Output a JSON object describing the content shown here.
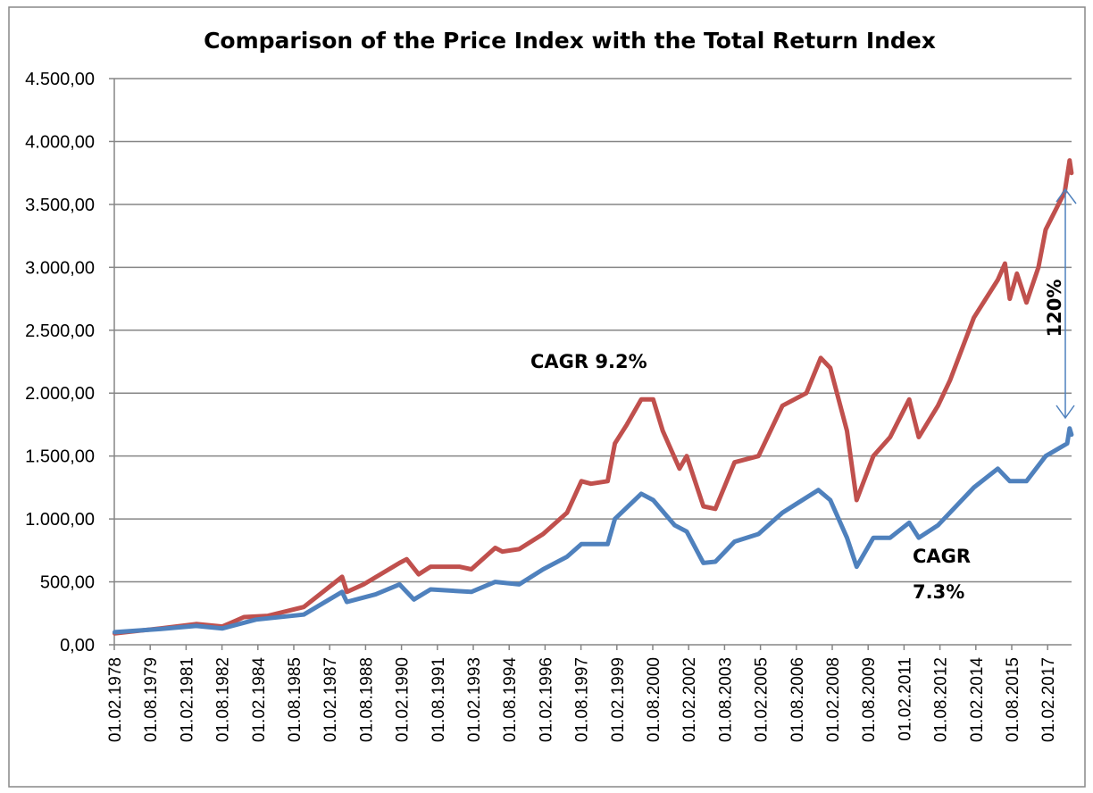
{
  "chart_data": {
    "type": "line",
    "title": "Comparison of the Price Index with the Total Return Index",
    "xlabel": "",
    "ylabel": "",
    "ylim": [
      0,
      4500
    ],
    "y_ticks": [
      0,
      500,
      1000,
      1500,
      2000,
      2500,
      3000,
      3500,
      4000,
      4500
    ],
    "y_tick_labels": [
      "0,00",
      "500,00",
      "1.000,00",
      "1.500,00",
      "2.000,00",
      "2.500,00",
      "3.000,00",
      "3.500,00",
      "4.000,00",
      "4.500,00"
    ],
    "x_tick_labels": [
      "01.02.1978",
      "01.08.1979",
      "01.02.1981",
      "01.08.1982",
      "01.02.1984",
      "01.08.1985",
      "01.02.1987",
      "01.08.1988",
      "01.02.1990",
      "01.08.1991",
      "01.02.1993",
      "01.08.1994",
      "01.02.1996",
      "01.08.1997",
      "01.02.1999",
      "01.08.2000",
      "01.02.2002",
      "01.08.2003",
      "01.02.2005",
      "01.08.2006",
      "01.02.2008",
      "01.08.2009",
      "01.02.2011",
      "01.08.2012",
      "01.02.2014",
      "01.08.2015",
      "01.02.2017"
    ],
    "xlim": [
      1978.083,
      2018.1
    ],
    "grid": "horizontal",
    "legend": "none",
    "series": [
      {
        "name": "Total Return Index",
        "color": "#c0504d",
        "x": [
          1978.1,
          1980,
          1981.5,
          1982.6,
          1983.5,
          1984.5,
          1986,
          1987.6,
          1987.8,
          1988.5,
          1990,
          1990.3,
          1990.8,
          1991.3,
          1992.5,
          1993,
          1994,
          1994.3,
          1995,
          1996,
          1997,
          1997.6,
          1998,
          1998.7,
          1999,
          1999.5,
          2000.1,
          2000.6,
          2001,
          2001.7,
          2002,
          2002.7,
          2003.2,
          2004,
          2005,
          2006,
          2007,
          2007.6,
          2008,
          2008.7,
          2009.1,
          2009.8,
          2010.5,
          2011.3,
          2011.7,
          2012.5,
          2013,
          2014,
          2015,
          2015.3,
          2015.5,
          2015.8,
          2016.2,
          2016.7,
          2017,
          2017.8,
          2018,
          2018.08
        ],
        "values": [
          90,
          130,
          165,
          145,
          220,
          230,
          300,
          540,
          420,
          480,
          650,
          680,
          560,
          620,
          620,
          600,
          770,
          740,
          760,
          880,
          1050,
          1300,
          1280,
          1300,
          1600,
          1750,
          1950,
          1950,
          1700,
          1400,
          1500,
          1100,
          1080,
          1450,
          1500,
          1900,
          2000,
          2280,
          2200,
          1700,
          1150,
          1500,
          1650,
          1950,
          1650,
          1900,
          2100,
          2600,
          2900,
          3030,
          2750,
          2950,
          2720,
          3000,
          3300,
          3600,
          3850,
          3750
        ]
      },
      {
        "name": "Price Index",
        "color": "#4f81bd",
        "x": [
          1978.1,
          1980,
          1981.5,
          1982.6,
          1984,
          1986,
          1987.6,
          1987.8,
          1989,
          1990,
          1990.6,
          1991.3,
          1993,
          1994,
          1995,
          1996,
          1997,
          1997.6,
          1998.7,
          1999,
          2000.1,
          2000.6,
          2001.5,
          2002,
          2002.7,
          2003.2,
          2004,
          2005,
          2006,
          2007.5,
          2008,
          2008.7,
          2009.1,
          2009.8,
          2010.5,
          2011.3,
          2011.7,
          2012.5,
          2014,
          2015,
          2015.5,
          2016.2,
          2017,
          2017.9,
          2018,
          2018.08
        ],
        "values": [
          100,
          125,
          150,
          130,
          200,
          240,
          420,
          340,
          400,
          480,
          360,
          440,
          420,
          500,
          480,
          600,
          700,
          800,
          800,
          1000,
          1200,
          1150,
          950,
          900,
          650,
          660,
          820,
          880,
          1050,
          1230,
          1150,
          850,
          620,
          850,
          850,
          970,
          850,
          950,
          1250,
          1400,
          1300,
          1300,
          1500,
          1600,
          1720,
          1670
        ]
      }
    ],
    "annotations": {
      "total_return_cagr": "CAGR 9.2%",
      "price_cagr_line1": "CAGR",
      "price_cagr_line2": "7.3%",
      "gap": "120%"
    }
  }
}
